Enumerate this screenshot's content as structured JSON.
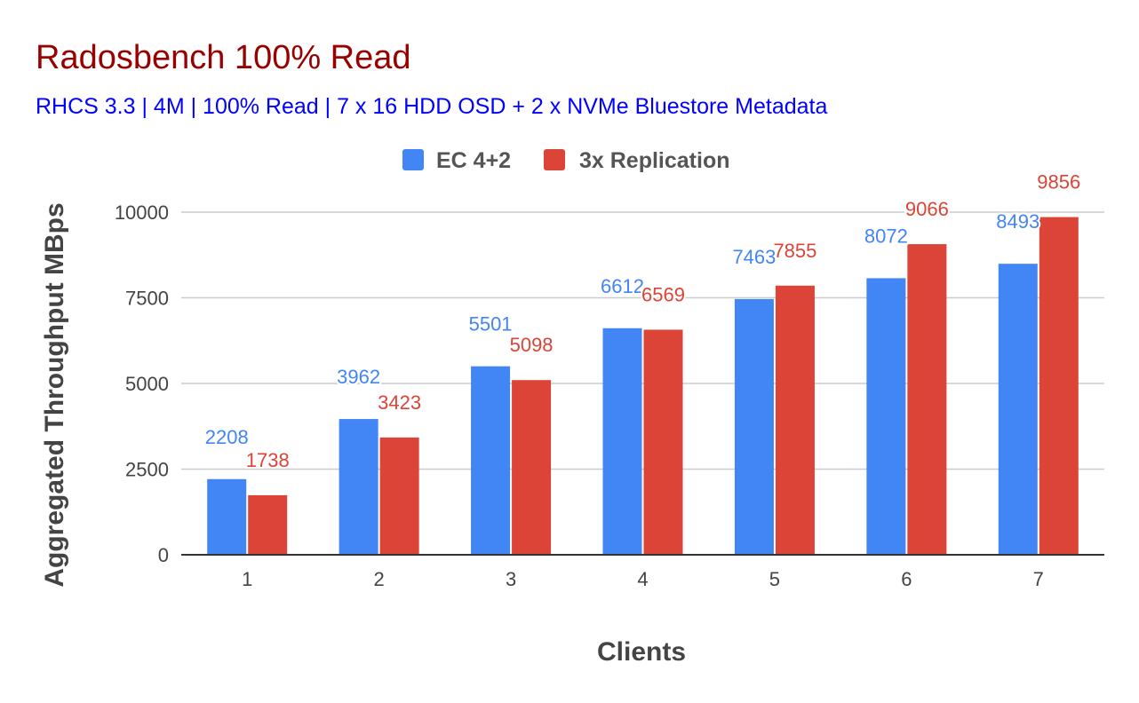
{
  "chart_data": {
    "type": "bar",
    "title": "Radosbench 100% Read",
    "subtitle": "RHCS 3.3 | 4M | 100% Read | 7 x 16 HDD OSD + 2 x NVMe Bluestore Metadata",
    "xlabel": "Clients",
    "ylabel": "Aggregated Throughput MBps",
    "categories": [
      "1",
      "2",
      "3",
      "4",
      "5",
      "6",
      "7"
    ],
    "series": [
      {
        "name": "EC 4+2",
        "color": "#4285f4",
        "values": [
          2208,
          3962,
          5501,
          6612,
          7463,
          8072,
          8493
        ],
        "labels": [
          "2208",
          "3962",
          "5501",
          "6612",
          "7463",
          "8072",
          "8493"
        ]
      },
      {
        "name": "3x Replication",
        "color": "#db4437",
        "values": [
          1738,
          3423,
          5098,
          6569,
          7855,
          9066,
          9856
        ],
        "labels": [
          "1738",
          "3423",
          "5098",
          "6569",
          "7855",
          "9066",
          "9856"
        ]
      }
    ],
    "ylim": [
      0,
      10000
    ],
    "yticks": [
      0,
      2500,
      5000,
      7500,
      10000
    ],
    "ytick_labels": [
      "0",
      "2500",
      "5000",
      "7500",
      "10000"
    ],
    "grid": true,
    "legend_position": "top-center"
  },
  "colors": {
    "title": "#990000",
    "subtitle": "#0000ff",
    "axis_text": "#444444",
    "grid": "#cccccc",
    "axis_line": "#333333"
  }
}
